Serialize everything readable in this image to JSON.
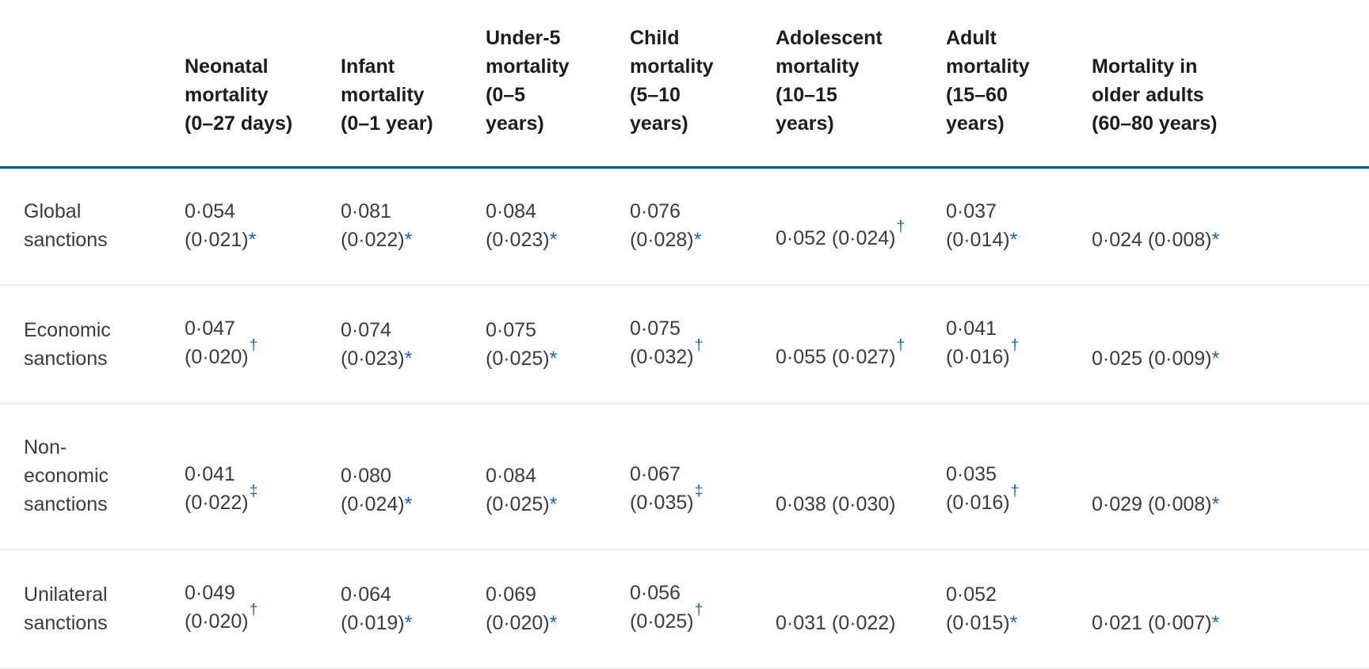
{
  "colors": {
    "header_rule": "#065a82",
    "row_rule": "#ededed",
    "marker_blue": "#1a63a8",
    "header_text": "#1d1d1d",
    "body_text": "#3b3b3b",
    "background": "#ffffff"
  },
  "markers": {
    "asterisk": "*",
    "dagger": "†",
    "double_dagger": "‡"
  },
  "table": {
    "corner_label": "",
    "header": {
      "columns": [
        {
          "id": "neonatal",
          "label": "Neonatal mortality (0–27 days)",
          "lines": [
            "Neonatal",
            "mortality",
            "(0–27 days)"
          ]
        },
        {
          "id": "infant",
          "label": "Infant mortality (0–1 year)",
          "lines": [
            "Infant",
            "mortality",
            "(0–1 year)"
          ]
        },
        {
          "id": "under5",
          "label": "Under-5 mortality (0–5 years)",
          "lines": [
            "Under-5",
            "mortality",
            "(0–5",
            "years)"
          ]
        },
        {
          "id": "child",
          "label": "Child mortality (5–10 years)",
          "lines": [
            "Child",
            "mortality",
            "(5–10",
            "years)"
          ]
        },
        {
          "id": "adolescent",
          "label": "Adolescent mortality (10–15 years)",
          "lines": [
            "Adolescent",
            "mortality",
            "(10–15",
            "years)"
          ]
        },
        {
          "id": "adult",
          "label": "Adult mortality (15–60 years)",
          "lines": [
            "Adult",
            "mortality",
            "(15–60",
            "years)"
          ]
        },
        {
          "id": "older",
          "label": "Mortality in older adults (60–80 years)",
          "lines": [
            "Mortality in",
            "older adults",
            "(60–80 years)"
          ]
        }
      ]
    },
    "rows": [
      {
        "label": "Global sanctions",
        "label_lines": [
          "Global",
          "sanctions"
        ],
        "cells": [
          {
            "lines": [
              "0·054",
              "(0·021)"
            ],
            "marker": "*"
          },
          {
            "lines": [
              "0·081",
              "(0·022)"
            ],
            "marker": "*"
          },
          {
            "lines": [
              "0·084",
              "(0·023)"
            ],
            "marker": "*"
          },
          {
            "lines": [
              "0·076",
              "(0·028)"
            ],
            "marker": "*"
          },
          {
            "lines": [
              "0·052 (0·024)"
            ],
            "marker": "†"
          },
          {
            "lines": [
              "0·037",
              "(0·014)"
            ],
            "marker": "*"
          },
          {
            "lines": [
              "0·024 (0·008)"
            ],
            "marker": "*"
          }
        ]
      },
      {
        "label": "Economic sanctions",
        "label_lines": [
          "Economic",
          "sanctions"
        ],
        "cells": [
          {
            "lines": [
              "0·047",
              "(0·020)"
            ],
            "marker": "†"
          },
          {
            "lines": [
              "0·074",
              "(0·023)"
            ],
            "marker": "*"
          },
          {
            "lines": [
              "0·075",
              "(0·025)"
            ],
            "marker": "*"
          },
          {
            "lines": [
              "0·075",
              "(0·032)"
            ],
            "marker": "†"
          },
          {
            "lines": [
              "0·055 (0·027)"
            ],
            "marker": "†"
          },
          {
            "lines": [
              "0·041",
              "(0·016)"
            ],
            "marker": "†"
          },
          {
            "lines": [
              "0·025 (0·009)"
            ],
            "marker": "*"
          }
        ]
      },
      {
        "label": "Non-economic sanctions",
        "label_lines": [
          "Non-",
          "economic",
          "sanctions"
        ],
        "cells": [
          {
            "lines": [
              "0·041",
              "(0·022)"
            ],
            "marker": "‡"
          },
          {
            "lines": [
              "0·080",
              "(0·024)"
            ],
            "marker": "*"
          },
          {
            "lines": [
              "0·084",
              "(0·025)"
            ],
            "marker": "*"
          },
          {
            "lines": [
              "0·067",
              "(0·035)"
            ],
            "marker": "‡"
          },
          {
            "lines": [
              "0·038 (0·030)"
            ],
            "marker": ""
          },
          {
            "lines": [
              "0·035",
              "(0·016)"
            ],
            "marker": "†"
          },
          {
            "lines": [
              "0·029 (0·008)"
            ],
            "marker": "*"
          }
        ]
      },
      {
        "label": "Unilateral sanctions",
        "label_lines": [
          "Unilateral",
          "sanctions"
        ],
        "cells": [
          {
            "lines": [
              "0·049",
              "(0·020)"
            ],
            "marker": "†"
          },
          {
            "lines": [
              "0·064",
              "(0·019)"
            ],
            "marker": "*"
          },
          {
            "lines": [
              "0·069",
              "(0·020)"
            ],
            "marker": "*"
          },
          {
            "lines": [
              "0·056",
              "(0·025)"
            ],
            "marker": "†"
          },
          {
            "lines": [
              "0·031 (0·022)"
            ],
            "marker": ""
          },
          {
            "lines": [
              "0·052",
              "(0·015)"
            ],
            "marker": "*"
          },
          {
            "lines": [
              "0·021 (0·007)"
            ],
            "marker": "*"
          }
        ]
      }
    ]
  }
}
